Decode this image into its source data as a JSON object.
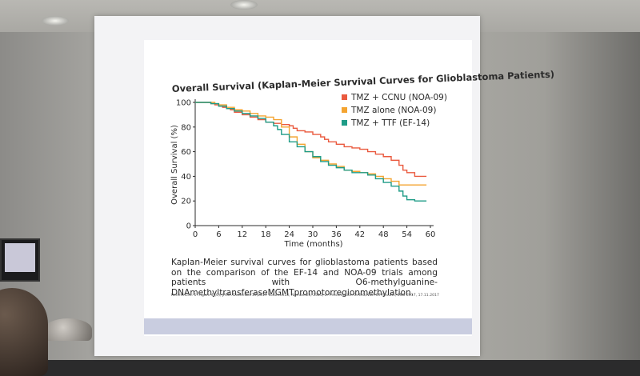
{
  "slide": {
    "caption": "Kaplan-Meier survival curves for glioblastoma patients based on the comparison of the EF-14 and NOA-09 trials among patients with O6-methylguanine-DNAmethyltransferaseMGMTpromotorregionmethylation.",
    "references": "References: 1. Figure 4 (C), JAMA December19,2017 Volume318, Number23, 2315; 2. Presentation CeTeG/NOA-09 Results, SNO 2017, 17.11.2017"
  },
  "colors": {
    "tmz_ccnu": "#ea5a3f",
    "tmz_alone": "#f4a431",
    "tmz_ttf": "#1f9c87",
    "axis": "#2b2b2b"
  },
  "chart_data": {
    "type": "line",
    "title": "Overall Survival (Kaplan-Meier Survival Curves for Glioblastoma Patients)",
    "xlabel": "Time (months)",
    "ylabel": "Overall Survival (%)",
    "xlim": [
      0,
      60
    ],
    "ylim": [
      0,
      100
    ],
    "xticks": [
      0,
      6,
      12,
      18,
      24,
      30,
      36,
      42,
      48,
      54,
      60
    ],
    "yticks": [
      0,
      20,
      40,
      60,
      80,
      100
    ],
    "grid": false,
    "legend_position": "top-right",
    "series": [
      {
        "name": "TMZ + CCNU (NOA-09)",
        "color": "#ea5a3f",
        "x": [
          0,
          3,
          4,
          5,
          6,
          7,
          8,
          9,
          10,
          12,
          14,
          16,
          18,
          20,
          22,
          24,
          25,
          26,
          28,
          30,
          32,
          33,
          34,
          36,
          38,
          40,
          42,
          44,
          46,
          48,
          50,
          52,
          53,
          54,
          56,
          59
        ],
        "y": [
          100,
          100,
          99,
          98,
          97,
          96,
          95,
          94,
          92,
          90,
          88,
          86,
          84,
          83,
          82,
          81,
          79,
          77,
          76,
          74,
          72,
          70,
          68,
          66,
          64,
          63,
          62,
          60,
          58,
          56,
          53,
          49,
          45,
          43,
          40,
          40
        ]
      },
      {
        "name": "TMZ alone (NOA-09)",
        "color": "#f4a431",
        "x": [
          0,
          3,
          5,
          6,
          8,
          10,
          12,
          14,
          16,
          18,
          20,
          22,
          24,
          26,
          28,
          30,
          32,
          34,
          36,
          38,
          40,
          42,
          44,
          46,
          48,
          50,
          52,
          54,
          56,
          59
        ],
        "y": [
          100,
          100,
          99,
          98,
          96,
          94,
          93,
          91,
          89,
          88,
          86,
          80,
          72,
          66,
          60,
          55,
          53,
          50,
          48,
          45,
          44,
          43,
          42,
          40,
          38,
          36,
          33,
          33,
          33,
          33
        ]
      },
      {
        "name": "TMZ + TTF (EF-14)",
        "color": "#1f9c87",
        "x": [
          0,
          2,
          4,
          6,
          8,
          10,
          12,
          14,
          16,
          18,
          20,
          21,
          22,
          24,
          26,
          28,
          30,
          32,
          34,
          36,
          38,
          40,
          42,
          44,
          46,
          48,
          50,
          52,
          53,
          54,
          56,
          59
        ],
        "y": [
          100,
          100,
          99,
          97,
          95,
          93,
          91,
          89,
          87,
          84,
          81,
          78,
          74,
          68,
          64,
          60,
          56,
          52,
          49,
          47,
          45,
          43,
          43,
          41,
          38,
          35,
          32,
          28,
          24,
          21,
          20,
          20
        ]
      }
    ]
  }
}
